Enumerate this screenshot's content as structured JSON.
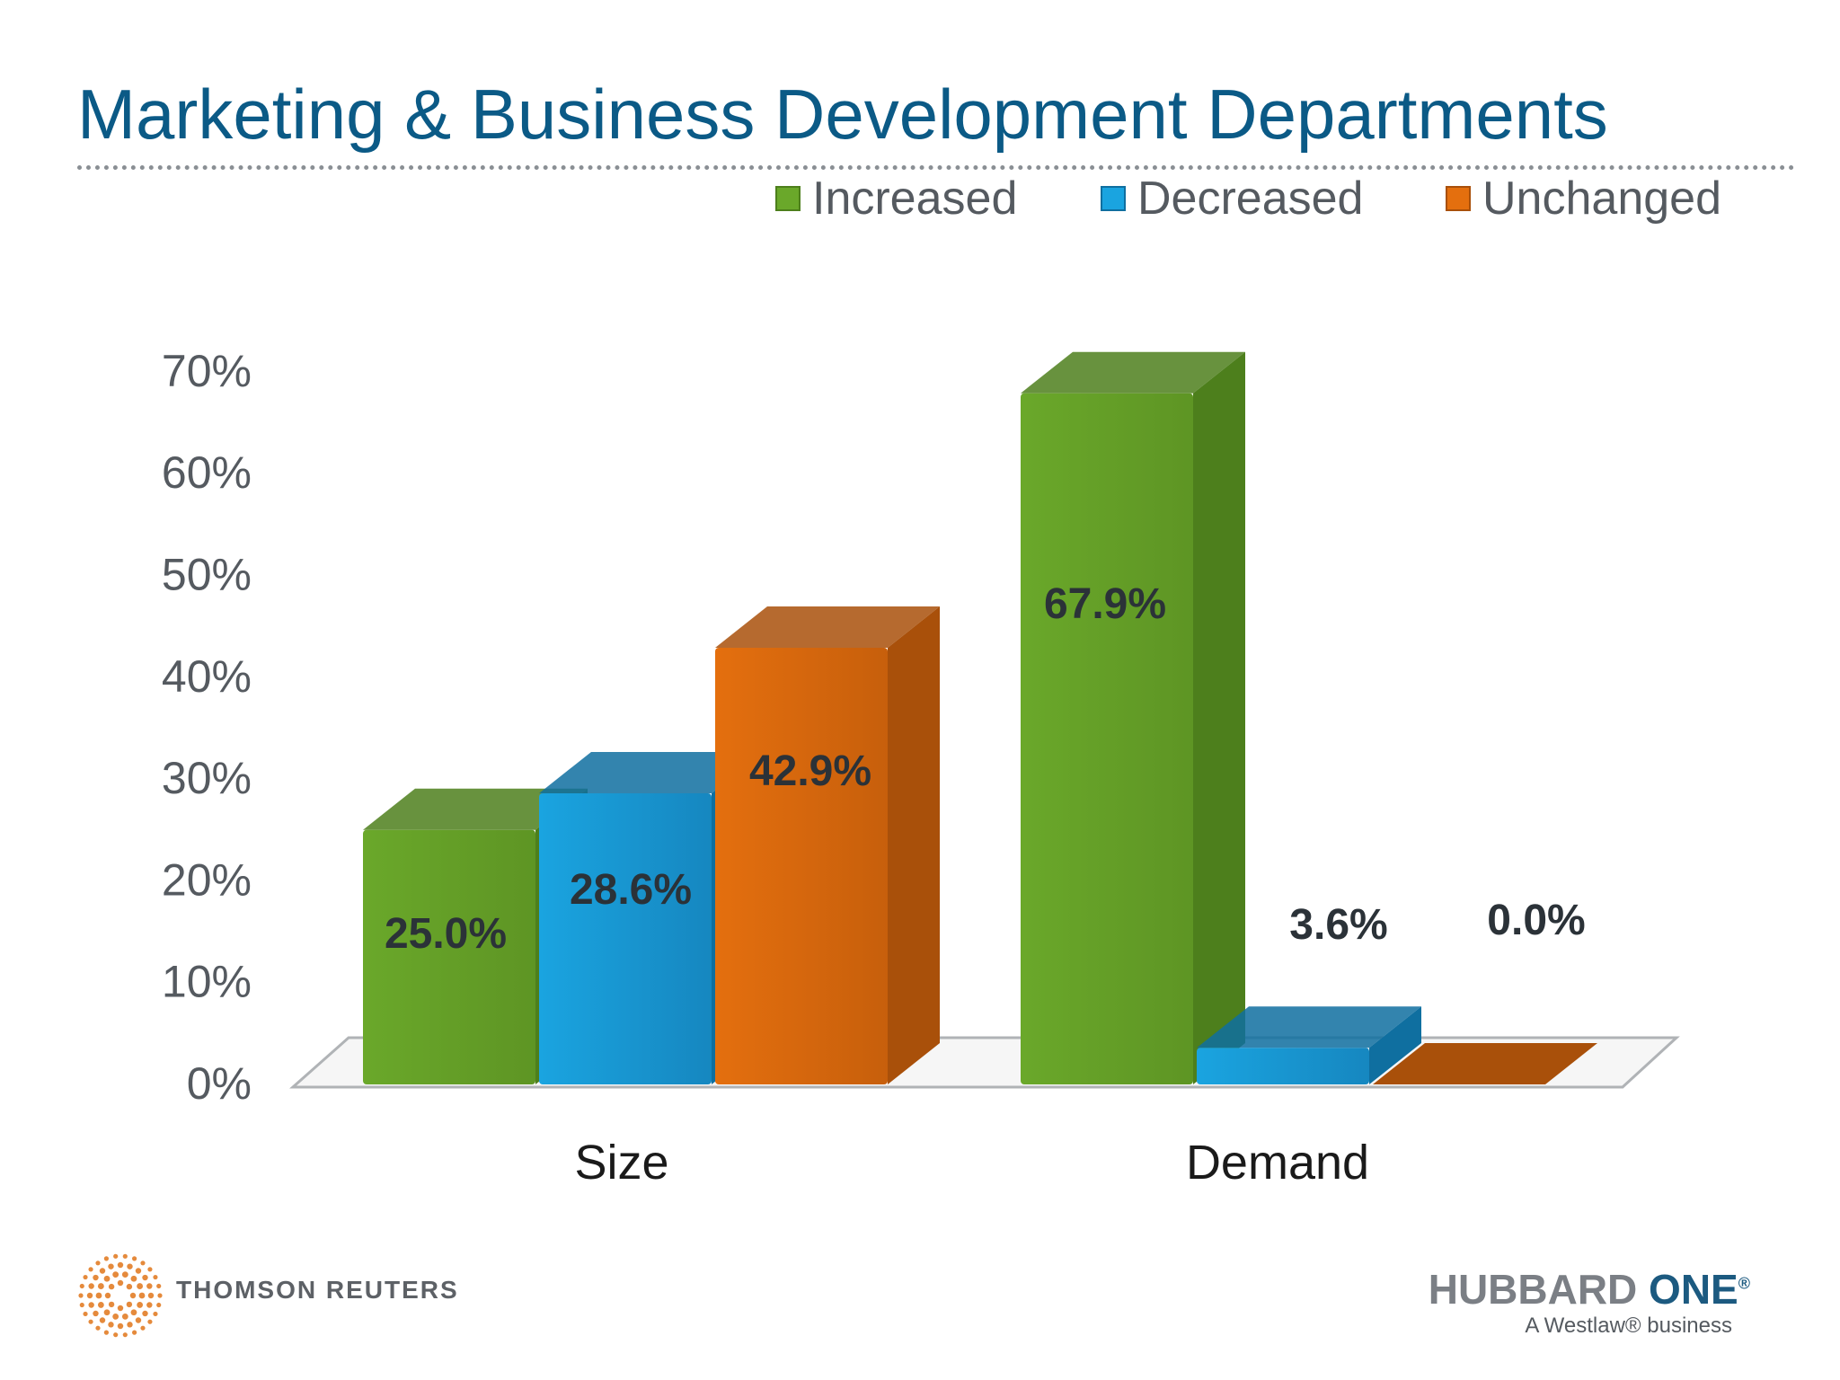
{
  "title": "Marketing & Business Development Departments",
  "colors": {
    "title": "#0b5a86",
    "increased": "#6aa82a",
    "decreased": "#1aa4e0",
    "unchanged": "#e46f0e"
  },
  "chart_data": {
    "type": "bar",
    "title": "Marketing & Business Development Departments",
    "categories": [
      "Size",
      "Demand"
    ],
    "series": [
      {
        "name": "Increased",
        "values": [
          25.0,
          67.9
        ],
        "labels": [
          "25.0%",
          "67.9%"
        ]
      },
      {
        "name": "Decreased",
        "values": [
          28.6,
          3.6
        ],
        "labels": [
          "28.6%",
          "3.6%"
        ]
      },
      {
        "name": "Unchanged",
        "values": [
          42.9,
          0.0
        ],
        "labels": [
          "42.9%",
          "0.0%"
        ]
      }
    ],
    "yticks": [
      "0%",
      "10%",
      "20%",
      "30%",
      "40%",
      "50%",
      "60%",
      "70%"
    ],
    "ylim": [
      0,
      70
    ],
    "legend_position": "top",
    "xlabel": "",
    "ylabel": ""
  },
  "footer": {
    "left_logo_text": "THOMSON REUTERS",
    "right_logo_word1": "HUBBARD",
    "right_logo_word2": "ONE",
    "right_logo_mark": "®",
    "right_tagline": "A Westlaw® business"
  }
}
